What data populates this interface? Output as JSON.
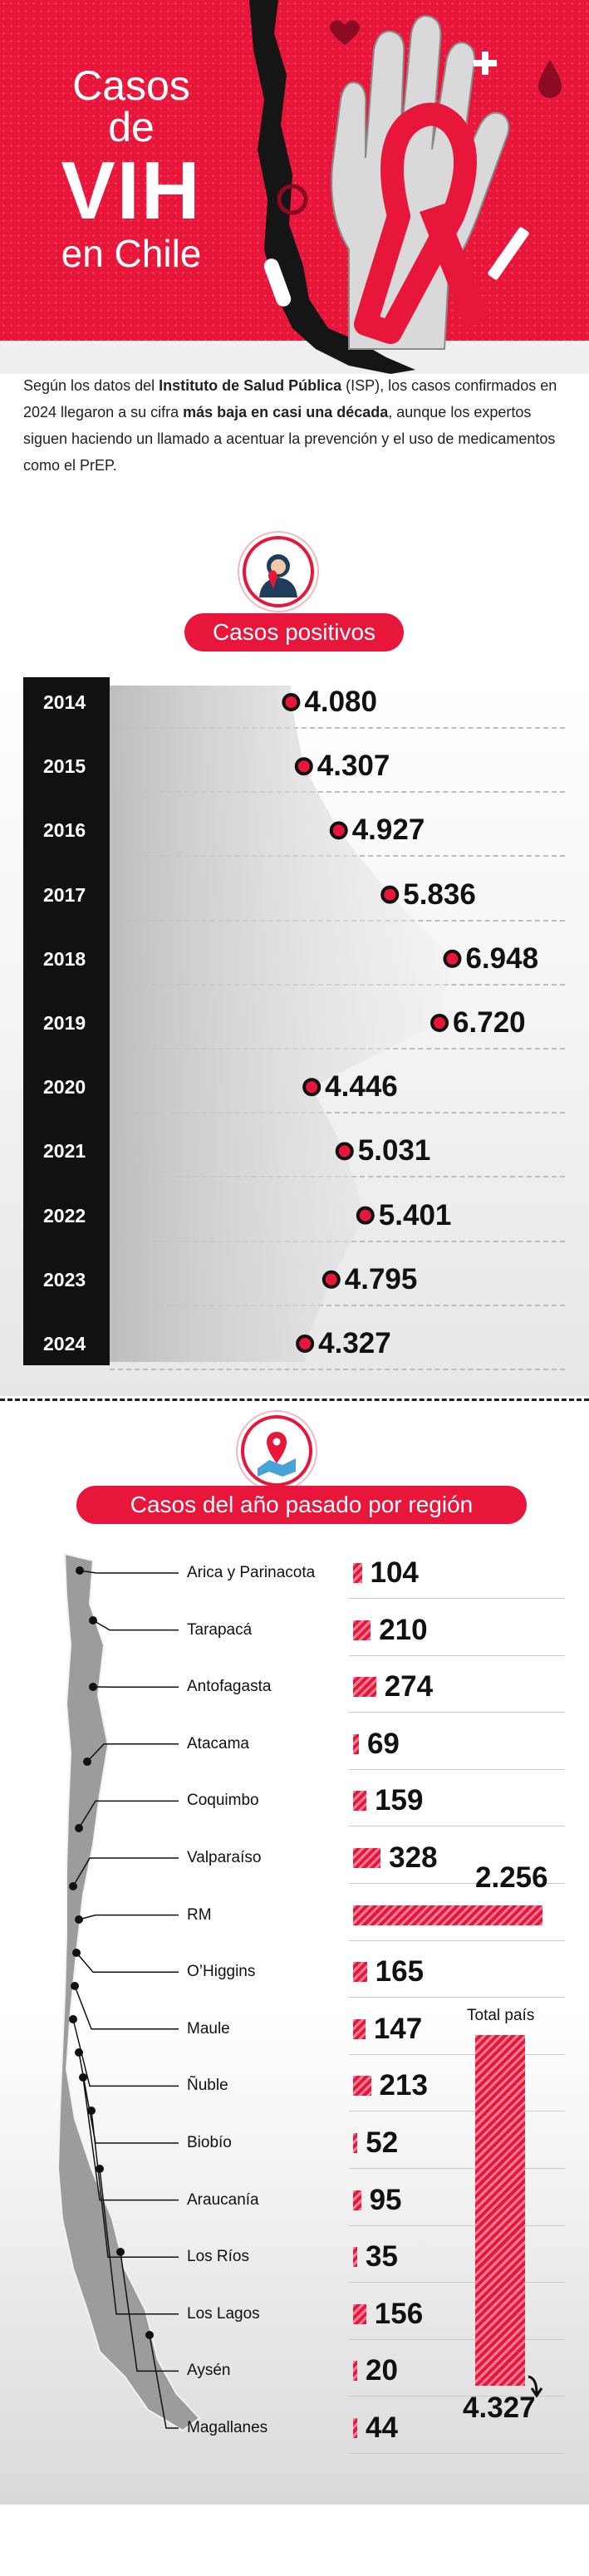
{
  "hero": {
    "title_line1": "Casos de",
    "title_line2": "VIH",
    "title_line3": "en Chile",
    "colors": {
      "accent": "#e8163b",
      "dark": "#111111"
    }
  },
  "intro": {
    "p1": "Según los datos del ",
    "b1": "Instituto de Salud Pública",
    "p2": " (ISP), los casos confirmados en 2024 llegaron a su cifra ",
    "b2": "más baja en casi una década",
    "p3": ", aunque los expertos siguen haciendo un llamado a acentuar la prevención y el uso de medicamentos como el PrEP."
  },
  "section1": {
    "heading": "Casos positivos",
    "icon": "person-with-ribbon-icon"
  },
  "section2": {
    "heading": "Casos del año pasado por región",
    "icon": "map-pin-icon",
    "total_label": "Total país"
  },
  "chart_data": [
    {
      "type": "line",
      "title": "Casos positivos",
      "x": [
        "2014",
        "2015",
        "2016",
        "2017",
        "2018",
        "2019",
        "2020",
        "2021",
        "2022",
        "2023",
        "2024"
      ],
      "values": [
        4080,
        4307,
        4927,
        5836,
        6948,
        6720,
        4446,
        5031,
        5401,
        4795,
        4327
      ],
      "value_labels": [
        "4.080",
        "4.307",
        "4.927",
        "5.836",
        "6.948",
        "6.720",
        "4.446",
        "5.031",
        "5.401",
        "4.795",
        "4.327"
      ],
      "grid": true
    },
    {
      "type": "bar",
      "title": "Casos del año pasado por región",
      "categories": [
        "Arica y Parinacota",
        "Tarapacá",
        "Antofagasta",
        "Atacama",
        "Coquimbo",
        "Valparaíso",
        "RM",
        "O’Higgins",
        "Maule",
        "Ñuble",
        "Biobío",
        "Araucanía",
        "Los Ríos",
        "Los Lagos",
        "Aysén",
        "Magallanes"
      ],
      "values": [
        104,
        210,
        274,
        69,
        159,
        328,
        2256,
        165,
        147,
        213,
        52,
        95,
        35,
        156,
        20,
        44
      ],
      "value_labels": [
        "104",
        "210",
        "274",
        "69",
        "159",
        "328",
        "2.256",
        "165",
        "147",
        "213",
        "52",
        "95",
        "35",
        "156",
        "20",
        "44"
      ],
      "total": {
        "label": "Total país",
        "value": 4327,
        "value_label": "4.327"
      }
    }
  ]
}
